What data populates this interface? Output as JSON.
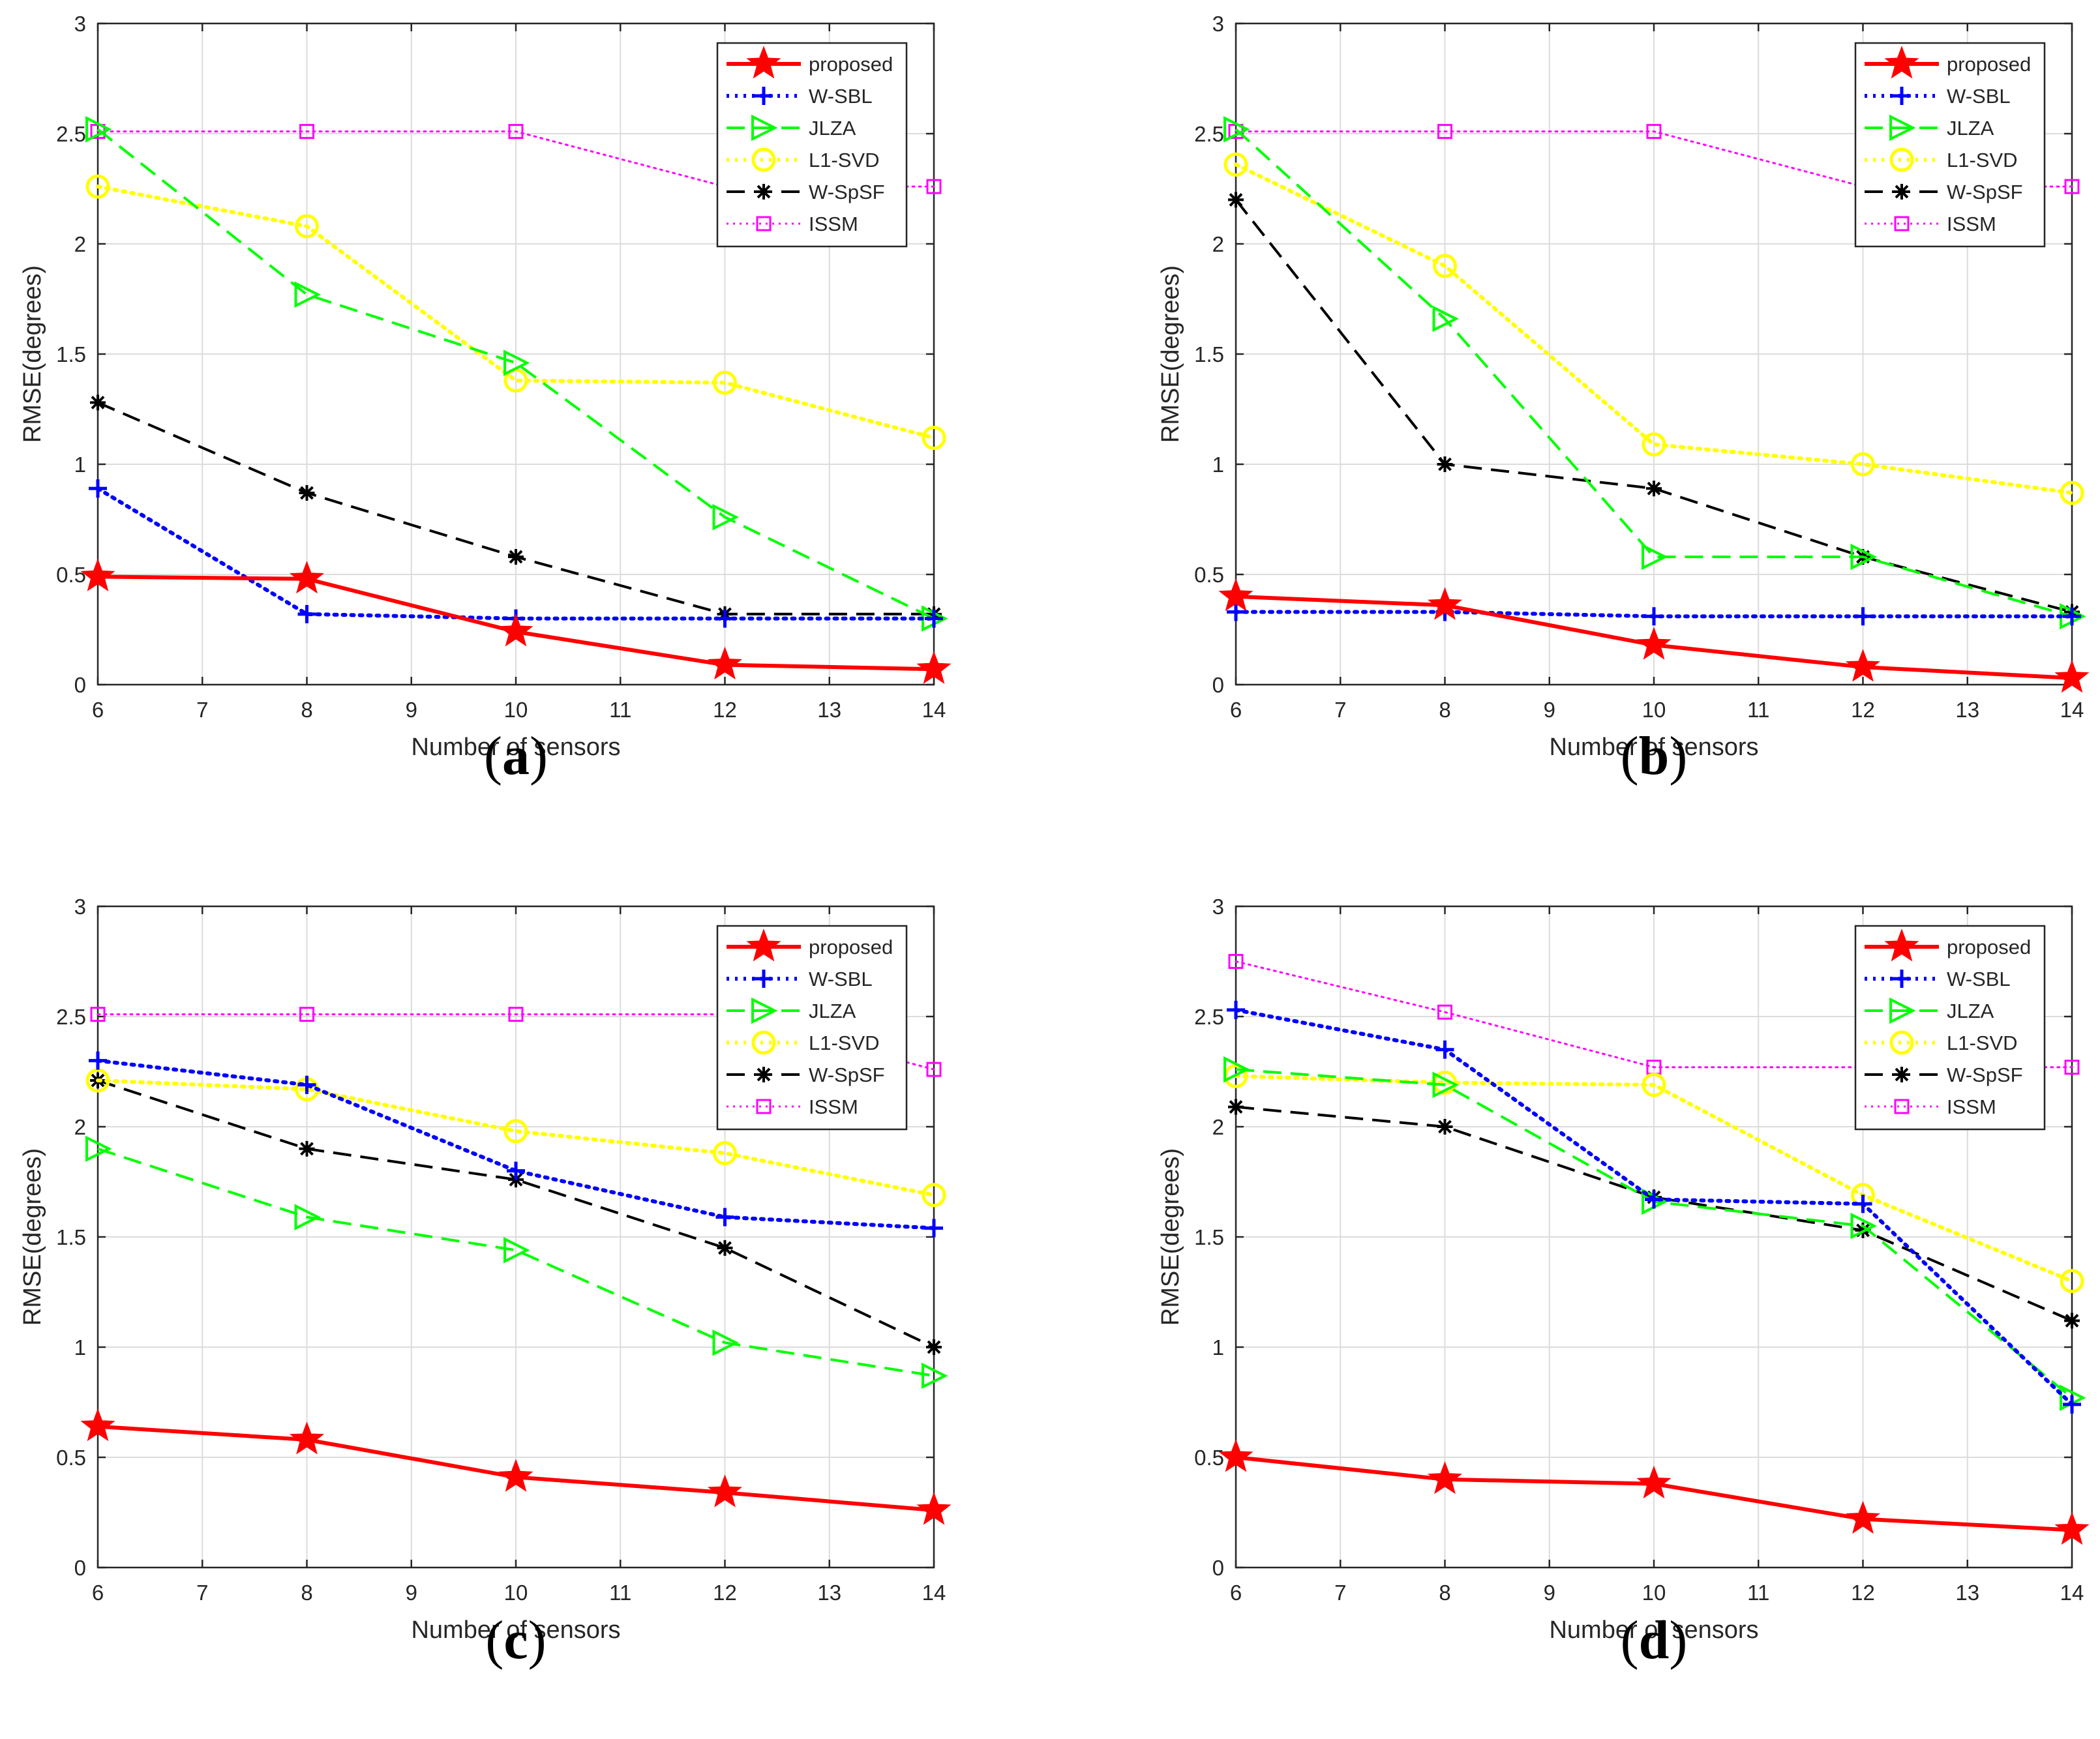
{
  "figure": {
    "series_styles": [
      {
        "name": "proposed",
        "color": "#ff0000",
        "dash": "solid",
        "marker": "star"
      },
      {
        "name": "W-SBL",
        "color": "#0000ff",
        "dash": "dotted",
        "marker": "plus"
      },
      {
        "name": "JLZA",
        "color": "#00ff00",
        "dash": "dashed",
        "marker": "triangle-right"
      },
      {
        "name": "L1-SVD",
        "color": "#ffff00",
        "dash": "dotted",
        "marker": "circle"
      },
      {
        "name": "W-SpSF",
        "color": "#000000",
        "dash": "dashed",
        "marker": "asterisk"
      },
      {
        "name": "ISSM",
        "color": "#ff00ff",
        "dash": "dotted-fine",
        "marker": "square"
      }
    ]
  },
  "chart_data": [
    {
      "panel": "(a)",
      "panel_letter": "a",
      "type": "line",
      "xlabel": "Number of sensors",
      "ylabel": "RMSE(degrees)",
      "xlim": [
        6,
        14
      ],
      "ylim": [
        0,
        3
      ],
      "xticks": [
        6,
        7,
        8,
        9,
        10,
        11,
        12,
        13,
        14
      ],
      "yticks": [
        0,
        0.5,
        1,
        1.5,
        2,
        2.5,
        3
      ],
      "ytick_labels": [
        "0",
        "0.5",
        "1",
        "1.5",
        "2",
        "2.5",
        "3"
      ],
      "grid": true,
      "legend_position": "top-right",
      "x": [
        6,
        8,
        10,
        12,
        14
      ],
      "series": [
        {
          "name": "proposed",
          "values": [
            0.49,
            0.48,
            0.24,
            0.09,
            0.07
          ]
        },
        {
          "name": "W-SBL",
          "values": [
            0.89,
            0.32,
            0.3,
            0.3,
            0.3
          ]
        },
        {
          "name": "JLZA",
          "values": [
            2.52,
            1.77,
            1.46,
            0.76,
            0.3
          ]
        },
        {
          "name": "L1-SVD",
          "values": [
            2.26,
            2.08,
            1.38,
            1.37,
            1.12
          ]
        },
        {
          "name": "W-SpSF",
          "values": [
            1.28,
            0.87,
            0.58,
            0.32,
            0.32
          ]
        },
        {
          "name": "ISSM",
          "values": [
            2.51,
            2.51,
            2.51,
            2.26,
            2.26
          ]
        }
      ]
    },
    {
      "panel": "(b)",
      "panel_letter": "b",
      "type": "line",
      "xlabel": "Number of sensors",
      "ylabel": "RMSE(degrees)",
      "xlim": [
        6,
        14
      ],
      "ylim": [
        0,
        3
      ],
      "xticks": [
        6,
        7,
        8,
        9,
        10,
        11,
        12,
        13,
        14
      ],
      "yticks": [
        0,
        0.5,
        1,
        1.5,
        2,
        2.5,
        3
      ],
      "ytick_labels": [
        "0",
        "0.5",
        "1",
        "1.5",
        "2",
        "2.5",
        "3"
      ],
      "grid": true,
      "legend_position": "top-right",
      "x": [
        6,
        8,
        10,
        12,
        14
      ],
      "series": [
        {
          "name": "proposed",
          "values": [
            0.4,
            0.36,
            0.18,
            0.08,
            0.03
          ]
        },
        {
          "name": "W-SBL",
          "values": [
            0.33,
            0.33,
            0.31,
            0.31,
            0.31
          ]
        },
        {
          "name": "JLZA",
          "values": [
            2.52,
            1.66,
            0.58,
            0.58,
            0.31
          ]
        },
        {
          "name": "L1-SVD",
          "values": [
            2.36,
            1.9,
            1.09,
            1.0,
            0.87
          ]
        },
        {
          "name": "W-SpSF",
          "values": [
            2.2,
            1.0,
            0.89,
            0.58,
            0.33
          ]
        },
        {
          "name": "ISSM",
          "values": [
            2.51,
            2.51,
            2.51,
            2.26,
            2.26
          ]
        }
      ]
    },
    {
      "panel": "(c)",
      "panel_letter": "c",
      "type": "line",
      "xlabel": "Number of sensors",
      "ylabel": "RMSE(degrees)",
      "xlim": [
        6,
        14
      ],
      "ylim": [
        0,
        3
      ],
      "xticks": [
        6,
        7,
        8,
        9,
        10,
        11,
        12,
        13,
        14
      ],
      "yticks": [
        0,
        0.5,
        1,
        1.5,
        2,
        2.5,
        3
      ],
      "ytick_labels": [
        "0",
        "0.5",
        "1",
        "1.5",
        "2",
        "2.5",
        "3"
      ],
      "grid": true,
      "legend_position": "top-right",
      "x": [
        6,
        8,
        10,
        12,
        14
      ],
      "series": [
        {
          "name": "proposed",
          "values": [
            0.64,
            0.58,
            0.41,
            0.34,
            0.26
          ]
        },
        {
          "name": "W-SBL",
          "values": [
            2.3,
            2.19,
            1.8,
            1.59,
            1.54
          ]
        },
        {
          "name": "JLZA",
          "values": [
            1.9,
            1.59,
            1.44,
            1.02,
            0.87
          ]
        },
        {
          "name": "L1-SVD",
          "values": [
            2.21,
            2.17,
            1.98,
            1.88,
            1.69
          ]
        },
        {
          "name": "W-SpSF",
          "values": [
            2.21,
            1.9,
            1.76,
            1.45,
            1.0
          ]
        },
        {
          "name": "ISSM",
          "values": [
            2.51,
            2.51,
            2.51,
            2.51,
            2.26
          ]
        }
      ]
    },
    {
      "panel": "(d)",
      "panel_letter": "d",
      "type": "line",
      "xlabel": "Number of sensors",
      "ylabel": "RMSE(degrees)",
      "xlim": [
        6,
        14
      ],
      "ylim": [
        0,
        3
      ],
      "xticks": [
        6,
        7,
        8,
        9,
        10,
        11,
        12,
        13,
        14
      ],
      "yticks": [
        0,
        0.5,
        1,
        1.5,
        2,
        2.5,
        3
      ],
      "ytick_labels": [
        "0",
        "0.5",
        "1",
        "1.5",
        "2",
        "2.5",
        "3"
      ],
      "grid": true,
      "legend_position": "top-right",
      "x": [
        6,
        8,
        10,
        12,
        14
      ],
      "series": [
        {
          "name": "proposed",
          "values": [
            0.5,
            0.4,
            0.38,
            0.22,
            0.17
          ]
        },
        {
          "name": "W-SBL",
          "values": [
            2.53,
            2.35,
            1.67,
            1.65,
            0.74
          ]
        },
        {
          "name": "JLZA",
          "values": [
            2.26,
            2.19,
            1.66,
            1.55,
            0.77
          ]
        },
        {
          "name": "L1-SVD",
          "values": [
            2.23,
            2.2,
            2.19,
            1.69,
            1.3
          ]
        },
        {
          "name": "W-SpSF",
          "values": [
            2.09,
            2.0,
            1.68,
            1.53,
            1.12
          ]
        },
        {
          "name": "ISSM",
          "values": [
            2.75,
            2.52,
            2.27,
            2.27,
            2.27
          ]
        }
      ]
    }
  ]
}
